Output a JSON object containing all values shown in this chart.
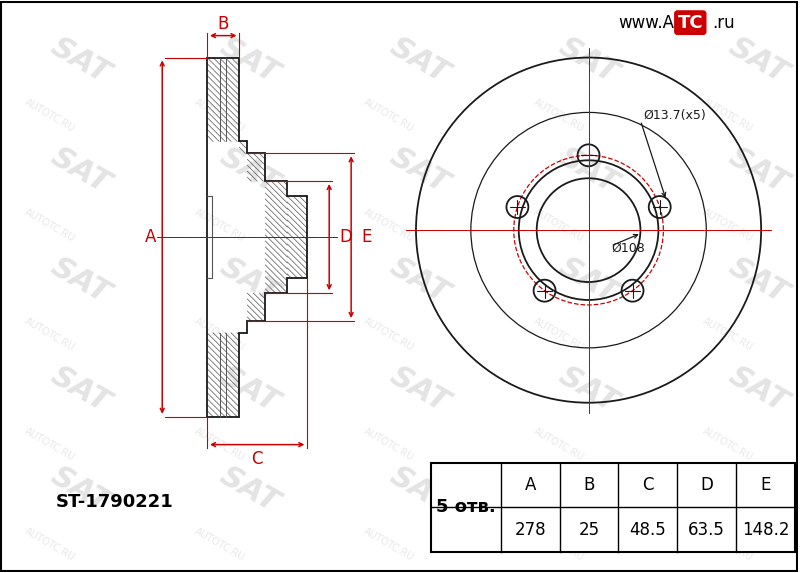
{
  "part_number": "ST-1790221",
  "holes": 5,
  "holes_label": "5 отв.",
  "dim_A": 278,
  "dim_B": 25,
  "dim_C": 48.5,
  "dim_D": 63.5,
  "dim_E": 148.2,
  "pcd_label": "Ø108",
  "hole_label": "Ø13.7(x5)",
  "red_color": "#cc0000",
  "line_color": "#1a1a1a",
  "hatch_color": "#555555",
  "table_cols": [
    "A",
    "B",
    "C",
    "D",
    "E"
  ],
  "table_vals": [
    "278",
    "25",
    "48.5",
    "63.5",
    "148.2"
  ],
  "watermark_color": "#d8d8d8",
  "fig_w": 8.0,
  "fig_h": 5.73,
  "dpi": 100
}
